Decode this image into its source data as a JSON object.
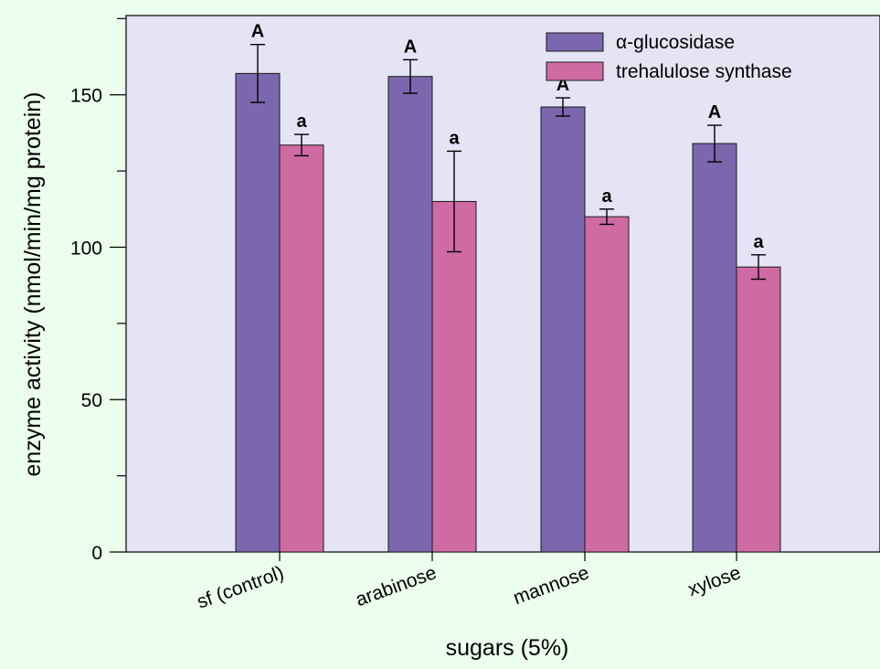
{
  "chart_data": {
    "type": "bar",
    "title": "",
    "xlabel": "sugars (5%)",
    "ylabel": "enzyme activity (nmol/min/mg protein)",
    "ylim": [
      0,
      176
    ],
    "yticks": [
      0,
      50,
      100,
      150
    ],
    "categories": [
      "sf (control)",
      "arabinose",
      "mannose",
      "xylose"
    ],
    "series": [
      {
        "name": "α-glucosidase",
        "color": "#7b67ad",
        "values": [
          157,
          156,
          146,
          134
        ],
        "errors": [
          9.5,
          5.5,
          3,
          6
        ],
        "significance": [
          "A",
          "A",
          "A",
          "A"
        ]
      },
      {
        "name": "trehalulose synthase",
        "color": "#cf6aa2",
        "values": [
          133.5,
          115,
          110,
          93.5
        ],
        "errors": [
          3.5,
          16.5,
          2.5,
          4
        ],
        "significance": [
          "a",
          "a",
          "a",
          "a"
        ]
      }
    ],
    "legend_position": "top-right",
    "grid": false,
    "background": "#e5e4f4",
    "page_background": "#ecffec"
  }
}
